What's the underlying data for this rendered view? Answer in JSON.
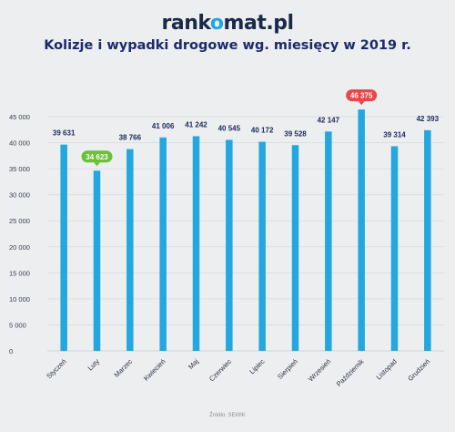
{
  "logo": {
    "prefix": "rank",
    "mark": "o",
    "suffix": "mat.pl"
  },
  "chart_data": {
    "type": "bar",
    "title": "Kolizje i wypadki drogowe wg. miesięcy w 2019 r.",
    "categories": [
      "Styczeń",
      "Luty",
      "Marzec",
      "Kwiecień",
      "Maj",
      "Czerwiec",
      "Lipiec",
      "Sierpień",
      "Wrzesień",
      "Październik",
      "Listopad",
      "Grudzień"
    ],
    "values": [
      39631,
      34623,
      38766,
      41006,
      41242,
      40545,
      40172,
      39528,
      42147,
      46375,
      39314,
      42393
    ],
    "value_labels": [
      "39 631",
      "34 623",
      "38 766",
      "41 006",
      "41 242",
      "40 545",
      "40 172",
      "39 528",
      "42 147",
      "46 375",
      "39 314",
      "42 393"
    ],
    "yticks": [
      0,
      5000,
      10000,
      15000,
      20000,
      25000,
      30000,
      35000,
      40000,
      45000
    ],
    "ytick_labels": [
      "0",
      "5 000",
      "10 000",
      "15 000",
      "20 000",
      "25 000",
      "30 000",
      "35 000",
      "40 000",
      "45 000"
    ],
    "ylim": [
      0,
      45000
    ],
    "grid": true,
    "highlight_min": {
      "index": 1,
      "color": "#6bbf3a"
    },
    "highlight_max": {
      "index": 9,
      "color": "#e8474b"
    },
    "bar_color": "#22a8de",
    "source": "Źródło: SEWIK"
  }
}
